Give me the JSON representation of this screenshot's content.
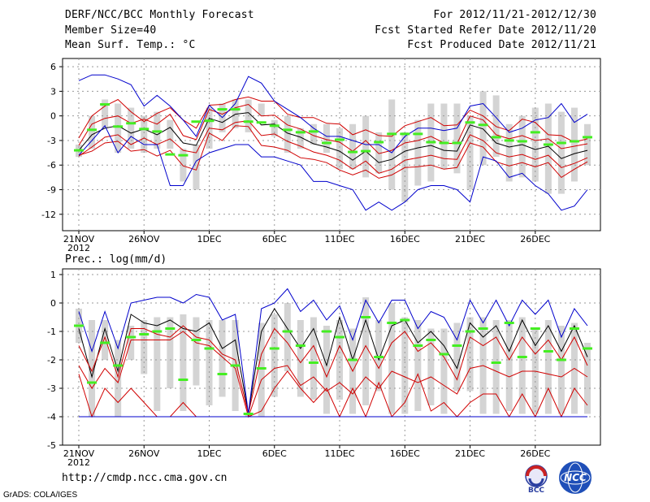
{
  "header": {
    "title": "DERF/NCC/BCC Monthly Forecast",
    "member": "Member Size=40",
    "variable": "Mean Surf. Temp.: °C",
    "period": "For 2012/11/21-2012/12/30",
    "started": "Fcst Started Refer Date 2012/11/20",
    "produced": "Fcst Produced Date 2012/11/21"
  },
  "footer": {
    "url": "http://cmdp.ncc.cma.gov.cn",
    "credit": "GrADS: COLA/IGES",
    "logo_bcc": "BCC",
    "logo_ncc": "NCC"
  },
  "colors": {
    "box": "#d4d4d4",
    "median": "#000000",
    "inner": "#d00000",
    "outer": "#0000cc",
    "obs": "#44ee22",
    "grid": "#999999"
  },
  "chart_data": [
    {
      "type": "line",
      "title": "Mean Surf. Temp.: °C",
      "x_ticks": [
        "21NOV",
        "26NOV",
        "1DEC",
        "6DEC",
        "11DEC",
        "16DEC",
        "21DEC",
        "26DEC"
      ],
      "x_year": "2012",
      "ylim": [
        -14,
        7
      ],
      "yticks": [
        6,
        3,
        0,
        -3,
        -6,
        -9,
        -12
      ],
      "days": 40,
      "box_low": [
        -5,
        -4,
        -1.5,
        -4.5,
        -4,
        -4.5,
        -4,
        -4,
        -8,
        -9,
        -4,
        -2,
        -1.5,
        -2,
        0,
        -2.5,
        -4.5,
        -4,
        -3.5,
        -4.5,
        -6.5,
        -6.5,
        -7.5,
        -7,
        -9,
        -10.5,
        -8.5,
        -8,
        -6.5,
        -7,
        -9,
        -6,
        -5,
        -8,
        -7.5,
        -8,
        -9.5,
        -9.5,
        -8,
        -6
      ],
      "box_high": [
        -3.5,
        0,
        2,
        1.5,
        1,
        0,
        0.5,
        -0.5,
        -4,
        -3.5,
        1,
        1.5,
        2,
        2,
        1.5,
        -0.5,
        0,
        -1.5,
        -1,
        -1,
        -1.5,
        -1,
        0,
        -2,
        2,
        -2,
        -0.5,
        1.5,
        1.5,
        1.5,
        0,
        3,
        2.5,
        -1,
        0,
        1,
        1.5,
        0.5,
        1,
        -1
      ],
      "series": [
        {
          "name": "ensemble median",
          "values": [
            -4.2,
            -2.3,
            -1.5,
            -1.2,
            -2.1,
            -1.6,
            -2.3,
            -1.4,
            -3.3,
            -3.6,
            -0.3,
            -0.8,
            0.2,
            0.4,
            -1.1,
            -1.0,
            -2.1,
            -2.6,
            -3.4,
            -3.8,
            -4.3,
            -5.4,
            -4.3,
            -5.7,
            -5.3,
            -4.3,
            -3.9,
            -3.6,
            -4.2,
            -4.3,
            -1.1,
            -1.6,
            -3.3,
            -3.8,
            -3.5,
            -4.1,
            -3.7,
            -5.2,
            -4.6,
            -4.2
          ]
        },
        {
          "name": "inner upper",
          "values": [
            -3.6,
            -1.0,
            -0.3,
            0.0,
            -0.9,
            -0.4,
            -1.0,
            0.2,
            -2.4,
            -2.9,
            0.8,
            0.2,
            1.0,
            1.4,
            0.0,
            0.1,
            -1.1,
            -1.6,
            -2.4,
            -2.9,
            -3.2,
            -4.3,
            -3.0,
            -4.6,
            -4.2,
            -3.3,
            -3.0,
            -2.5,
            -3.3,
            -3.4,
            0.0,
            -0.5,
            -2.3,
            -2.8,
            -2.4,
            -3.0,
            -2.8,
            -4.0,
            -3.7,
            -3.4
          ]
        },
        {
          "name": "inner lower",
          "values": [
            -4.9,
            -3.8,
            -2.6,
            -2.3,
            -3.5,
            -2.7,
            -3.5,
            -2.8,
            -4.2,
            -4.5,
            -1.5,
            -1.7,
            -0.8,
            -0.6,
            -2.4,
            -2.2,
            -3.1,
            -3.7,
            -4.4,
            -4.8,
            -5.4,
            -6.5,
            -5.5,
            -7.0,
            -6.5,
            -5.4,
            -5.1,
            -4.8,
            -5.2,
            -5.3,
            -2.3,
            -3.0,
            -4.5,
            -5.0,
            -4.7,
            -5.3,
            -4.8,
            -6.3,
            -5.8,
            -5.1
          ]
        },
        {
          "name": "outer upper",
          "values": [
            -2.7,
            0.0,
            1.2,
            2.0,
            0.5,
            -0.7,
            0.3,
            1.0,
            -0.5,
            -1.5,
            1.3,
            1.4,
            2.0,
            2.3,
            1.8,
            1.8,
            0.2,
            -0.2,
            -0.2,
            -0.9,
            -1.0,
            -2.3,
            -1.7,
            -2.4,
            -2.5,
            -1.2,
            -0.7,
            -0.2,
            -1.2,
            -1.1,
            0.7,
            0.0,
            -1.3,
            -1.8,
            -0.4,
            -0.8,
            -2.3,
            -2.4,
            -3.2,
            -2.8
          ]
        },
        {
          "name": "outer lower",
          "values": [
            -4.8,
            -4.3,
            -3.3,
            -3.1,
            -4.3,
            -4.1,
            -4.9,
            -4.2,
            -6.1,
            -6.6,
            -2.1,
            -3.0,
            -1.2,
            -1.3,
            -3.6,
            -3.8,
            -4.2,
            -5.1,
            -5.3,
            -5.7,
            -6.6,
            -7.2,
            -6.6,
            -7.6,
            -7.2,
            -6.3,
            -6.2,
            -6.0,
            -6.5,
            -6.3,
            -3.3,
            -3.8,
            -5.6,
            -6.1,
            -5.7,
            -6.2,
            -5.7,
            -7.5,
            -6.5,
            -5.6
          ]
        },
        {
          "name": "ensemble max",
          "values": [
            4.3,
            5.0,
            5.0,
            4.5,
            3.8,
            1.2,
            2.5,
            1.2,
            -0.5,
            -2.5,
            1.3,
            -0.2,
            1.5,
            4.8,
            4.0,
            1.8,
            0.8,
            -0.2,
            -1.5,
            -2.5,
            -2.5,
            -3.0,
            -3.5,
            -3.5,
            -4.5,
            -2.5,
            -1.5,
            -1.5,
            -1.8,
            -1.5,
            1.2,
            1.5,
            -0.2,
            -2.0,
            -1.5,
            -0.5,
            -0.2,
            1.5,
            -0.8,
            0.2
          ]
        },
        {
          "name": "ensemble min",
          "values": [
            -4.8,
            -3.0,
            -1.2,
            -4.5,
            -2.5,
            -3.5,
            -3.5,
            -8.5,
            -8.5,
            -5.5,
            -4.5,
            -4.0,
            -3.5,
            -3.5,
            -5.0,
            -5.0,
            -5.5,
            -6.0,
            -8.0,
            -8.0,
            -8.5,
            -9.0,
            -11.5,
            -10.5,
            -11.5,
            -10.5,
            -9.0,
            -8.5,
            -8.5,
            -9.0,
            -10.5,
            -5.0,
            -5.5,
            -7.5,
            -7.0,
            -8.5,
            -9.5,
            -11.5,
            -11.0,
            -9.0
          ]
        },
        {
          "name": "observed",
          "values": [
            -4.2,
            -1.7,
            1.4,
            -1.3,
            -0.9,
            -1.6,
            -1.9,
            -4.7,
            -4.8,
            -0.7,
            -0.6,
            0.8,
            0.8,
            -0.7,
            -0.8,
            -1.2,
            -1.7,
            -2.0,
            -1.9,
            -3.3,
            -2.9,
            -4.4,
            -4.3,
            -3.2,
            -2.2,
            -2.2,
            -2.2,
            -3.2,
            -3.3,
            -3.3,
            -0.8,
            -1.1,
            -2.6,
            -3.0,
            -3.1,
            -2.0,
            -3.5,
            -3.3,
            -3.1,
            -2.6
          ]
        }
      ]
    },
    {
      "type": "line",
      "title": "Prec.: log(mm/d)",
      "x_ticks": [
        "21NOV",
        "26NOV",
        "1DEC",
        "6DEC",
        "11DEC",
        "16DEC",
        "21DEC",
        "26DEC"
      ],
      "x_year": "2012",
      "ylim": [
        -5,
        1.2
      ],
      "yticks": [
        1,
        0,
        -1,
        -2,
        -3,
        -4,
        -5
      ],
      "baseline": -4,
      "days": 40,
      "box_low": [
        -1.4,
        -4,
        -2,
        -4,
        -2,
        -2.5,
        -3.8,
        -3,
        -3.8,
        -2.9,
        -3.6,
        -3.3,
        -3.8,
        -4,
        -4,
        -3.3,
        -2.4,
        -3.3,
        -3.4,
        -3.9,
        -3.4,
        -3.9,
        -3.6,
        -3.1,
        -3.9,
        -3.9,
        -3.8,
        -3.6,
        -3.9,
        -3.1,
        -3.1,
        -3.9,
        -3.9,
        -3.8,
        -3.9,
        -3.9,
        -3.9,
        -3.9,
        -3.9,
        -3.9
      ],
      "box_high": [
        -0.2,
        -0.6,
        -0.6,
        -1.3,
        -0.8,
        -0.6,
        -0.5,
        -0.5,
        -0.4,
        -0.5,
        -0.6,
        -0.6,
        -0.6,
        -3.9,
        -0.7,
        -0.4,
        0,
        -0.6,
        -0.5,
        -0.8,
        -0.6,
        -0.9,
        0.2,
        -0.6,
        0,
        -0.5,
        -0.6,
        -0.9,
        -0.9,
        -0.7,
        -0.5,
        -0.5,
        -0.6,
        -0.6,
        -0.5,
        -0.9,
        -0.6,
        -0.8,
        -0.7,
        -1.4
      ],
      "series": [
        {
          "name": "ensemble median",
          "values": [
            -0.9,
            -2.6,
            -0.9,
            -2.4,
            -0.4,
            -0.7,
            -0.8,
            -0.6,
            -0.9,
            -1.0,
            -0.7,
            -1.6,
            -1.3,
            -3.9,
            -1.0,
            -0.2,
            -0.9,
            -1.6,
            -0.9,
            -2.2,
            -0.5,
            -2.0,
            -0.6,
            -2.0,
            -0.8,
            -0.6,
            -1.4,
            -1.0,
            -1.5,
            -2.3,
            -0.7,
            -1.2,
            -0.8,
            -1.7,
            -0.6,
            -1.5,
            -0.8,
            -1.7,
            -0.8,
            -1.9
          ]
        },
        {
          "name": "inner upper",
          "values": [
            -1.5,
            -2.4,
            -1.2,
            -2.6,
            -0.9,
            -0.9,
            -1.1,
            -1.2,
            -0.8,
            -1.2,
            -1.3,
            -1.8,
            -2.0,
            -3.9,
            -1.8,
            -0.9,
            -1.4,
            -2.1,
            -1.5,
            -2.6,
            -1.5,
            -2.4,
            -1.5,
            -2.3,
            -1.4,
            -1.0,
            -1.7,
            -1.4,
            -1.9,
            -2.7,
            -1.2,
            -1.5,
            -1.2,
            -2.0,
            -1.2,
            -1.8,
            -1.3,
            -2.0,
            -1.2,
            -2.2
          ]
        },
        {
          "name": "inner lower",
          "values": [
            -2.2,
            -3.0,
            -2.3,
            -2.8,
            -1.3,
            -1.3,
            -1.3,
            -1.3,
            -1.0,
            -1.4,
            -1.5,
            -1.9,
            -2.3,
            -4.0,
            -2.7,
            -2.3,
            -2.2,
            -2.9,
            -2.6,
            -3.1,
            -2.8,
            -3.2,
            -2.6,
            -3.0,
            -2.4,
            -2.6,
            -2.8,
            -2.6,
            -2.9,
            -3.2,
            -2.3,
            -2.2,
            -2.4,
            -2.6,
            -2.4,
            -2.4,
            -2.5,
            -2.6,
            -2.3,
            -2.6
          ]
        },
        {
          "name": "outer upper",
          "values": [
            -2.5,
            -4.0,
            -3.0,
            -3.5,
            -3.0,
            -3.5,
            -4.0,
            -4.0,
            -3.5,
            -4.0,
            -4.0,
            -4.0,
            -4.0,
            -4.0,
            -3.8,
            -3.0,
            -2.4,
            -3.0,
            -3.5,
            -3.0,
            -4.0,
            -3.0,
            -4.0,
            -2.8,
            -4.0,
            -3.5,
            -2.5,
            -3.8,
            -3.5,
            -4.0,
            -3.5,
            -3.2,
            -3.2,
            -4.0,
            -3.2,
            -4.0,
            -3.0,
            -4.0,
            -3.0,
            -3.6
          ]
        },
        {
          "name": "ensemble max",
          "values": [
            -0.3,
            -1.7,
            -0.3,
            -1.6,
            0.0,
            0.1,
            0.2,
            0.2,
            0.0,
            0.3,
            0.2,
            -0.6,
            -0.4,
            -3.9,
            -0.2,
            0.0,
            0.5,
            -0.3,
            0.1,
            -0.6,
            -0.1,
            -1.3,
            0.1,
            -0.7,
            0.1,
            0.1,
            -0.9,
            -0.3,
            -0.5,
            -1.3,
            0.1,
            -0.7,
            0.1,
            -0.8,
            0.1,
            -0.4,
            0.1,
            -1.2,
            -0.2,
            -0.8
          ]
        },
        {
          "name": "ensemble min",
          "values": [
            -4,
            -4,
            -4,
            -4,
            -4,
            -4,
            -4,
            -4,
            -4,
            -4,
            -4,
            -4,
            -4,
            -4,
            -4,
            -4,
            -4,
            -4,
            -4,
            -4,
            -4,
            -4,
            -4,
            -4,
            -4,
            -4,
            -4,
            -4,
            -4,
            -4,
            -4,
            -4,
            -4,
            -4,
            -4,
            -4,
            -4,
            -4,
            -4,
            -4
          ]
        },
        {
          "name": "observed",
          "values": [
            -0.8,
            -2.8,
            -1.4,
            -2.2,
            -1.2,
            -1.1,
            -1.0,
            -0.9,
            -2.7,
            -1.3,
            -1.6,
            -2.5,
            -2.2,
            -3.9,
            -2.3,
            -1.6,
            -1.0,
            -1.5,
            -2.1,
            -1.0,
            -1.2,
            -2.0,
            -0.5,
            -1.9,
            -0.7,
            -0.6,
            -1.5,
            -1.3,
            -1.8,
            -1.5,
            -1.0,
            -0.9,
            -2.1,
            -0.7,
            -1.9,
            -0.9,
            -1.7,
            -2.0,
            -0.9,
            -1.6
          ]
        }
      ]
    }
  ]
}
